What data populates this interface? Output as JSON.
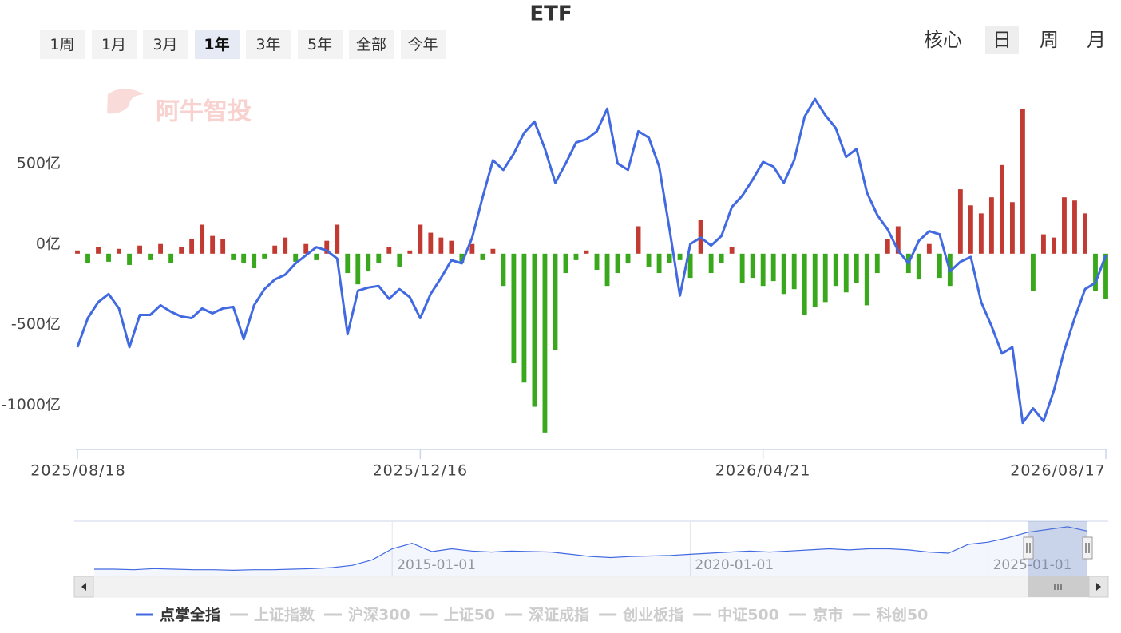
{
  "chart_data": {
    "type": "bar",
    "title": "ETF",
    "watermark": "阿牛智投",
    "range_buttons": [
      {
        "label": "1周"
      },
      {
        "label": "1月"
      },
      {
        "label": "3月"
      },
      {
        "label": "1年",
        "selected": true
      },
      {
        "label": "3年"
      },
      {
        "label": "5年"
      },
      {
        "label": "全部"
      },
      {
        "label": "今年"
      }
    ],
    "period_buttons": [
      {
        "label": "核心"
      },
      {
        "label": "日",
        "selected": true
      },
      {
        "label": "周"
      },
      {
        "label": "月"
      }
    ],
    "categories": [
      "2025/08/18",
      null,
      null,
      null,
      null,
      null,
      null,
      null,
      null,
      null,
      null,
      null,
      null,
      null,
      null,
      null,
      null,
      null,
      null,
      null,
      null,
      null,
      null,
      null,
      null,
      null,
      null,
      null,
      null,
      null,
      null,
      null,
      null,
      "2025/12/16",
      null,
      null,
      null,
      null,
      null,
      null,
      null,
      null,
      null,
      null,
      null,
      null,
      null,
      null,
      null,
      null,
      null,
      null,
      null,
      null,
      null,
      null,
      null,
      null,
      null,
      null,
      null,
      null,
      null,
      null,
      null,
      null,
      "2026/04/21",
      null,
      null,
      null,
      null,
      null,
      null,
      null,
      null,
      null,
      null,
      null,
      null,
      null,
      null,
      null,
      null,
      null,
      null,
      null,
      null,
      null,
      null,
      null,
      null,
      null,
      null,
      null,
      null,
      null,
      null,
      null,
      null,
      "2026/08/17"
    ],
    "series": [
      {
        "type": "bar",
        "color": "#c23b32",
        "negative_color": "#3aa81c",
        "values": [
          20,
          -60,
          40,
          -50,
          30,
          -70,
          50,
          -40,
          60,
          -60,
          40,
          90,
          180,
          110,
          90,
          -40,
          -60,
          -90,
          -30,
          50,
          100,
          -50,
          60,
          -40,
          80,
          180,
          -120,
          -190,
          -110,
          -60,
          40,
          -80,
          20,
          180,
          130,
          100,
          80,
          -60,
          60,
          -40,
          30,
          -200,
          -680,
          -800,
          -950,
          -1110,
          -600,
          -120,
          -40,
          20,
          -100,
          -200,
          -120,
          -60,
          170,
          -80,
          -120,
          -60,
          -40,
          -150,
          210,
          -120,
          -60,
          40,
          -180,
          -150,
          -200,
          -170,
          -250,
          -220,
          -380,
          -330,
          -300,
          -200,
          -240,
          -180,
          -320,
          -120,
          90,
          170,
          -120,
          -160,
          60,
          -150,
          -200,
          400,
          300,
          250,
          350,
          550,
          320,
          900,
          -230,
          120,
          100,
          350,
          330,
          250,
          -230,
          -280
        ]
      },
      {
        "type": "line",
        "name": "点掌全指",
        "color": "#4169e1",
        "values": [
          -580,
          -400,
          -300,
          -250,
          -340,
          -580,
          -380,
          -380,
          -320,
          -360,
          -390,
          -400,
          -340,
          -370,
          -340,
          -330,
          -530,
          -320,
          -220,
          -160,
          -130,
          -60,
          -10,
          40,
          20,
          -30,
          -500,
          -230,
          -210,
          -200,
          -280,
          -220,
          -270,
          -400,
          -250,
          -150,
          -40,
          -60,
          100,
          350,
          580,
          520,
          620,
          750,
          820,
          650,
          440,
          560,
          690,
          710,
          760,
          900,
          560,
          520,
          760,
          720,
          540,
          150,
          -260,
          60,
          100,
          50,
          110,
          290,
          360,
          460,
          570,
          540,
          440,
          580,
          850,
          960,
          860,
          780,
          600,
          650,
          380,
          240,
          150,
          20,
          -60,
          80,
          140,
          120,
          -110,
          -50,
          -20,
          -300,
          -450,
          -620,
          -580,
          -1050,
          -960,
          -1040,
          -850,
          -600,
          -400,
          -220,
          -180,
          -10
        ]
      }
    ],
    "ylim": [
      -1200,
      1000
    ],
    "yticks": [
      {
        "value": 500,
        "label": "500亿"
      },
      {
        "value": 0,
        "label": "0亿"
      },
      {
        "value": -500,
        "label": "-500亿"
      },
      {
        "value": -1000,
        "label": "-1000亿"
      }
    ],
    "navigator": {
      "categories": [
        null,
        null,
        null,
        null,
        null,
        null,
        null,
        null,
        null,
        null,
        null,
        null,
        null,
        null,
        null,
        "2015-01-01",
        null,
        null,
        null,
        null,
        null,
        null,
        null,
        null,
        null,
        null,
        null,
        null,
        null,
        null,
        "2020-01-01",
        null,
        null,
        null,
        null,
        null,
        null,
        null,
        null,
        null,
        null,
        null,
        null,
        null,
        null,
        "2025-01-01",
        null,
        null,
        null,
        null,
        null
      ],
      "values": [
        13,
        13,
        12,
        14,
        13,
        12,
        12,
        11,
        12,
        12,
        13,
        14,
        16,
        20,
        30,
        50,
        60,
        45,
        50,
        46,
        44,
        46,
        45,
        44,
        40,
        36,
        34,
        36,
        37,
        38,
        40,
        42,
        44,
        46,
        44,
        46,
        48,
        50,
        48,
        50,
        50,
        48,
        44,
        42,
        58,
        62,
        70,
        80,
        85,
        90,
        82
      ],
      "ylim": [
        0,
        100
      ],
      "color": "#4169e1"
    },
    "legend_inactive": [
      "上证指数",
      "沪深300",
      "上证50",
      "深证成指",
      "创业板指",
      "中证500",
      "京市",
      "科创50"
    ]
  }
}
